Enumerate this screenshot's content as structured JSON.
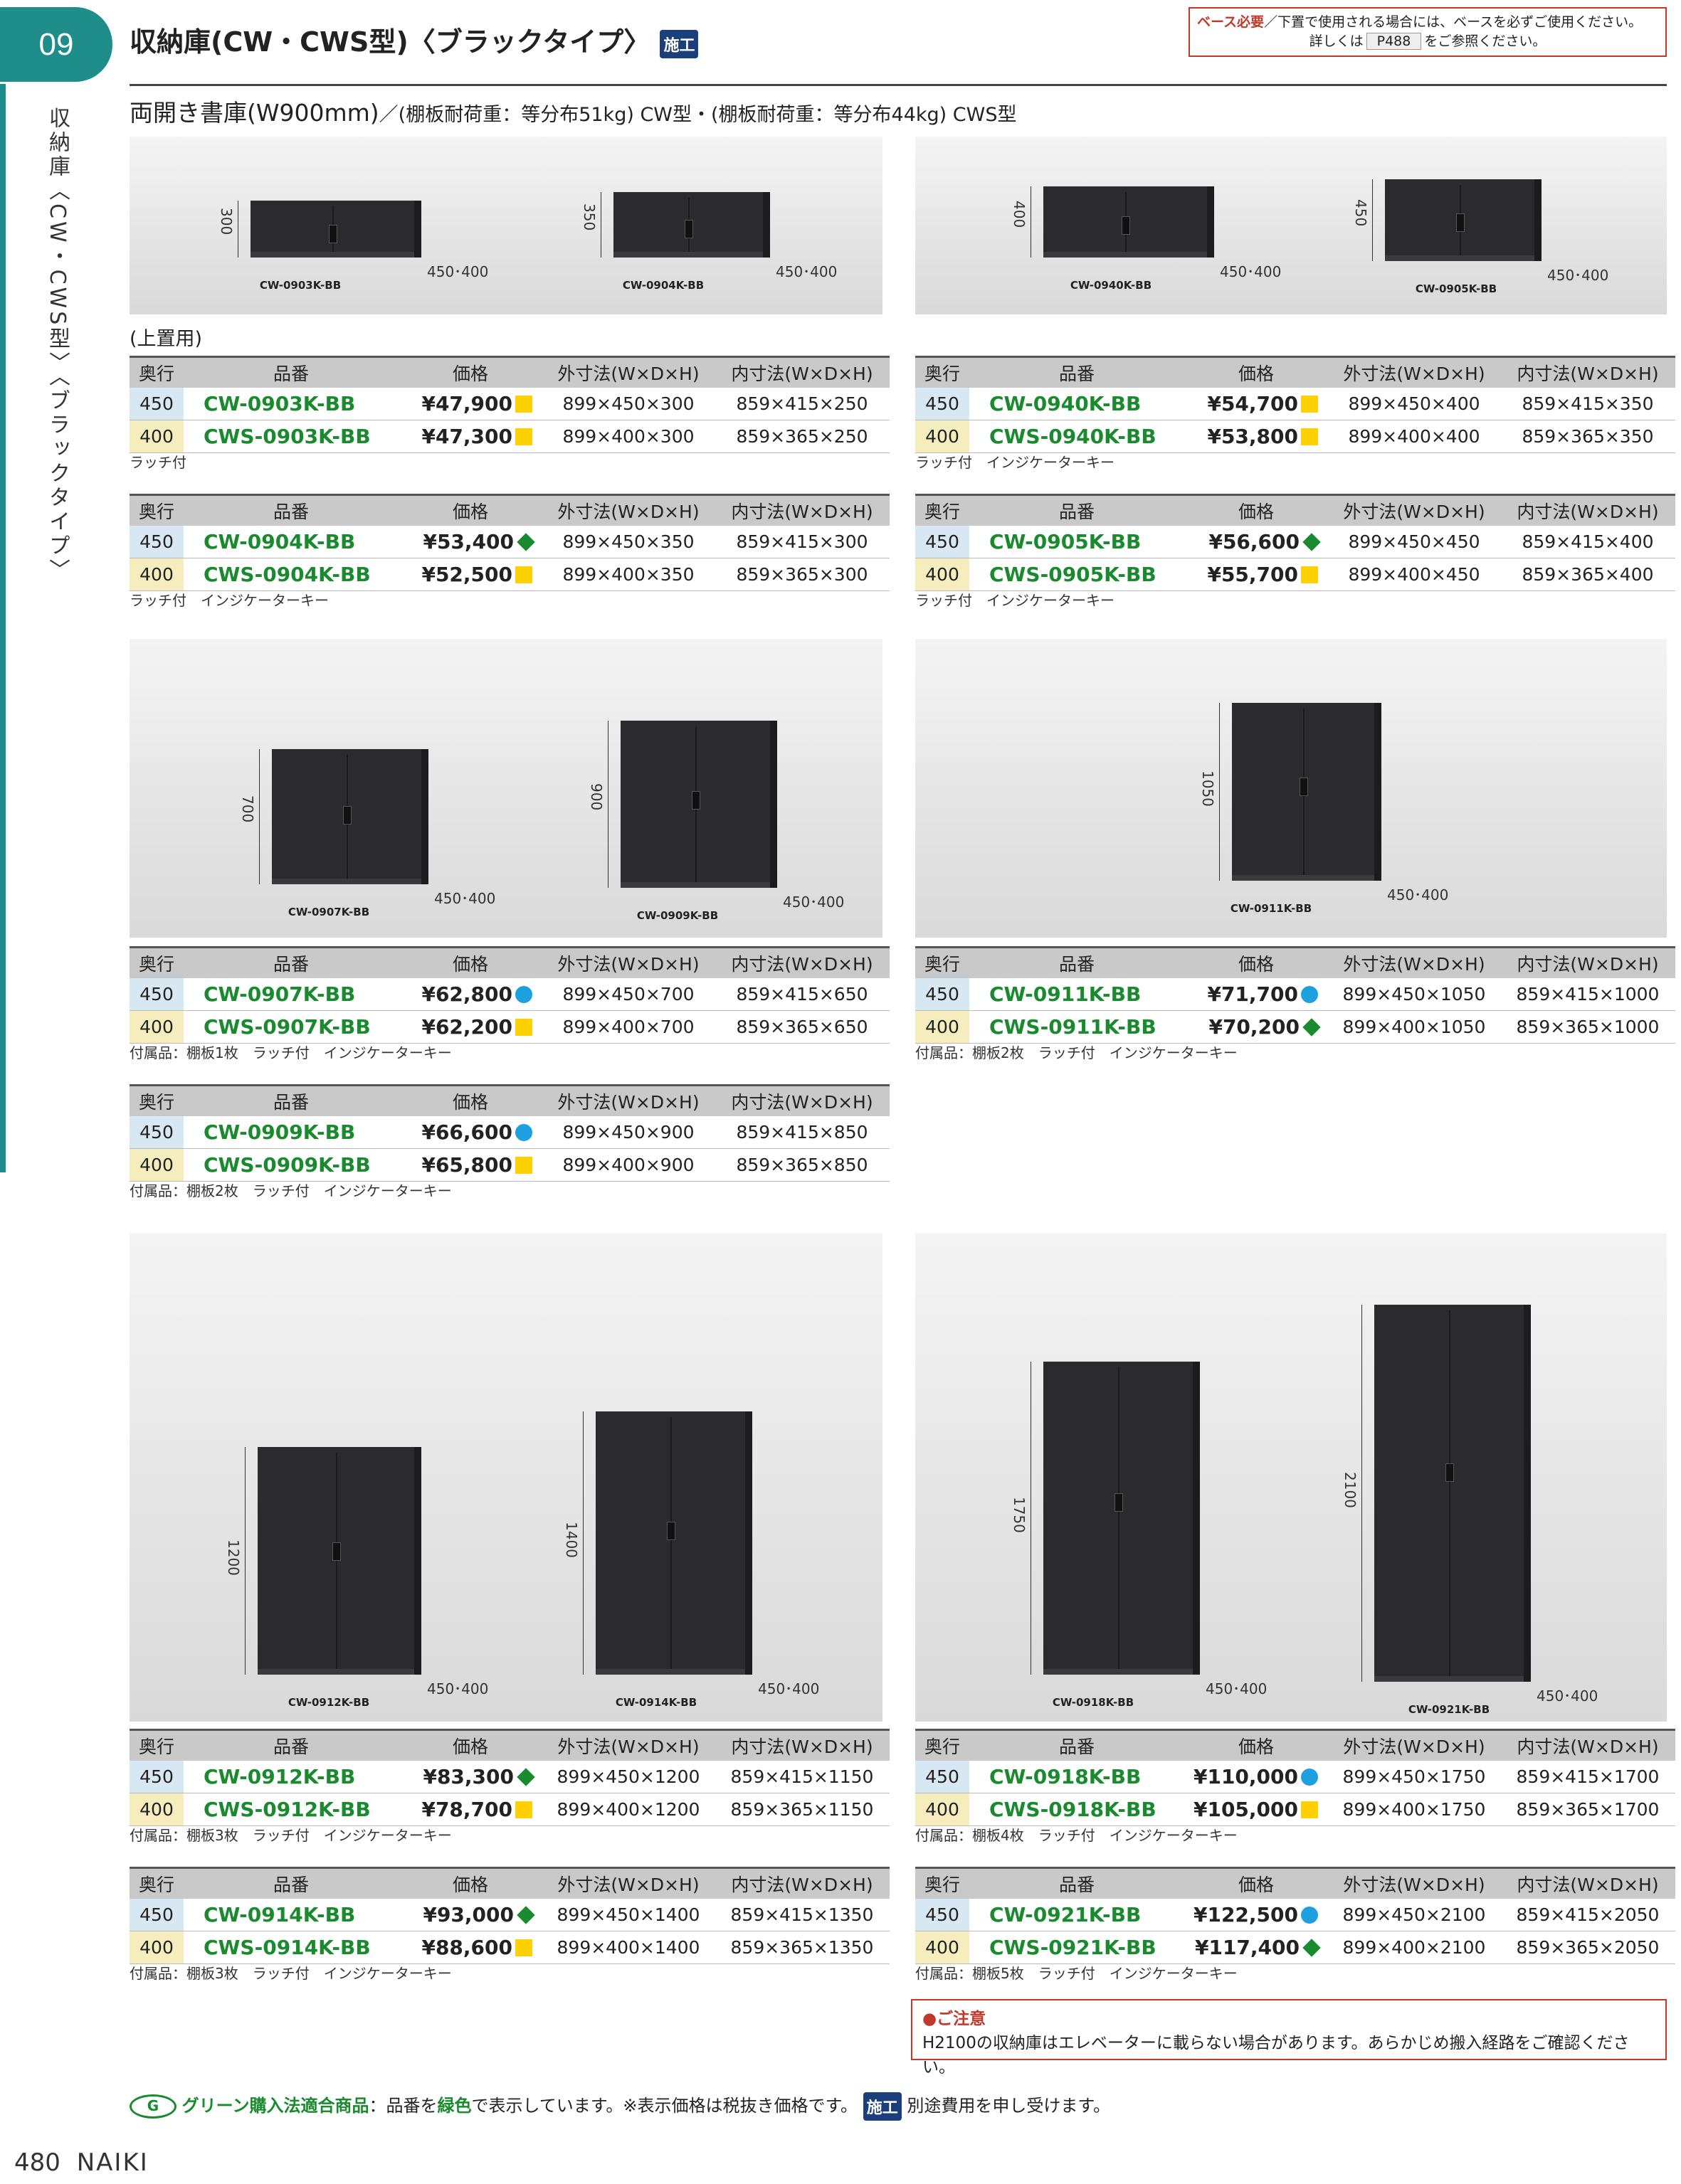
{
  "header": {
    "chapter": "09",
    "vertical_title": "収納庫〈CW・CWS型〉〈ブラックタイプ〉",
    "title": "収納庫(CW・CWS型)〈ブラックタイプ〉",
    "badge": "施工",
    "note_red": "ベース必要",
    "note_line1": "／下置で使用される場合には、ベースを必ずご使用ください。",
    "note_line2a": "詳しくは",
    "note_page": "P488",
    "note_line2b": "をご参照ください。",
    "subtitle_main": "両開き書庫(W900mm)",
    "subtitle_rest": "／(棚板耐荷重：等分布51kg) CW型・(棚板耐荷重：等分布44kg) CWS型"
  },
  "table_headers": [
    "奥行",
    "品番",
    "価格",
    "外寸法(W×D×H)",
    "内寸法(W×D×H)"
  ],
  "photos": {
    "p1": [
      {
        "cap": "CW-0903K-BB",
        "h": "300",
        "d": "450･400"
      },
      {
        "cap": "CW-0904K-BB",
        "h": "350",
        "d": "450･400"
      }
    ],
    "p2": [
      {
        "cap": "CW-0940K-BB",
        "h": "400",
        "d": "450･400"
      },
      {
        "cap": "CW-0905K-BB",
        "h": "450",
        "d": "450･400"
      }
    ],
    "p3": [
      {
        "cap": "CW-0907K-BB",
        "h": "700",
        "d": "450･400"
      },
      {
        "cap": "CW-0909K-BB",
        "h": "900",
        "d": "450･400"
      }
    ],
    "p4": [
      {
        "cap": "CW-0911K-BB",
        "h": "1050",
        "d": "450･400"
      }
    ],
    "p5": [
      {
        "cap": "CW-0912K-BB",
        "h": "1200",
        "d": "450･400"
      },
      {
        "cap": "CW-0914K-BB",
        "h": "1400",
        "d": "450･400"
      }
    ],
    "p6": [
      {
        "cap": "CW-0918K-BB",
        "h": "1750",
        "d": "450･400"
      },
      {
        "cap": "CW-0921K-BB",
        "h": "2100",
        "d": "450･400"
      }
    ]
  },
  "upper_label": "(上置用)",
  "tables": {
    "t0903": {
      "rows": [
        {
          "depth": "450",
          "part": "CW-0903K-BB",
          "price": "¥47,900",
          "mark": "sq",
          "outer": "899×450×300",
          "inner": "859×415×250"
        },
        {
          "depth": "400",
          "part": "CWS-0903K-BB",
          "price": "¥47,300",
          "mark": "sq",
          "outer": "899×400×300",
          "inner": "859×365×250"
        }
      ],
      "note": "ラッチ付"
    },
    "t0940": {
      "rows": [
        {
          "depth": "450",
          "part": "CW-0940K-BB",
          "price": "¥54,700",
          "mark": "sq",
          "outer": "899×450×400",
          "inner": "859×415×350"
        },
        {
          "depth": "400",
          "part": "CWS-0940K-BB",
          "price": "¥53,800",
          "mark": "sq",
          "outer": "899×400×400",
          "inner": "859×365×350"
        }
      ],
      "note": "ラッチ付　インジケーターキー"
    },
    "t0904": {
      "rows": [
        {
          "depth": "450",
          "part": "CW-0904K-BB",
          "price": "¥53,400",
          "mark": "di",
          "outer": "899×450×350",
          "inner": "859×415×300"
        },
        {
          "depth": "400",
          "part": "CWS-0904K-BB",
          "price": "¥52,500",
          "mark": "sq",
          "outer": "899×400×350",
          "inner": "859×365×300"
        }
      ],
      "note": "ラッチ付　インジケーターキー"
    },
    "t0905": {
      "rows": [
        {
          "depth": "450",
          "part": "CW-0905K-BB",
          "price": "¥56,600",
          "mark": "di",
          "outer": "899×450×450",
          "inner": "859×415×400"
        },
        {
          "depth": "400",
          "part": "CWS-0905K-BB",
          "price": "¥55,700",
          "mark": "sq",
          "outer": "899×400×450",
          "inner": "859×365×400"
        }
      ],
      "note": "ラッチ付　インジケーターキー"
    },
    "t0907": {
      "rows": [
        {
          "depth": "450",
          "part": "CW-0907K-BB",
          "price": "¥62,800",
          "mark": "ci",
          "outer": "899×450×700",
          "inner": "859×415×650"
        },
        {
          "depth": "400",
          "part": "CWS-0907K-BB",
          "price": "¥62,200",
          "mark": "sq",
          "outer": "899×400×700",
          "inner": "859×365×650"
        }
      ],
      "note": "付属品：棚板1枚　ラッチ付　インジケーターキー"
    },
    "t0911": {
      "rows": [
        {
          "depth": "450",
          "part": "CW-0911K-BB",
          "price": "¥71,700",
          "mark": "ci",
          "outer": "899×450×1050",
          "inner": "859×415×1000"
        },
        {
          "depth": "400",
          "part": "CWS-0911K-BB",
          "price": "¥70,200",
          "mark": "di",
          "outer": "899×400×1050",
          "inner": "859×365×1000"
        }
      ],
      "note": "付属品：棚板2枚　ラッチ付　インジケーターキー"
    },
    "t0909": {
      "rows": [
        {
          "depth": "450",
          "part": "CW-0909K-BB",
          "price": "¥66,600",
          "mark": "ci",
          "outer": "899×450×900",
          "inner": "859×415×850"
        },
        {
          "depth": "400",
          "part": "CWS-0909K-BB",
          "price": "¥65,800",
          "mark": "sq",
          "outer": "899×400×900",
          "inner": "859×365×850"
        }
      ],
      "note": "付属品：棚板2枚　ラッチ付　インジケーターキー"
    },
    "t0912": {
      "rows": [
        {
          "depth": "450",
          "part": "CW-0912K-BB",
          "price": "¥83,300",
          "mark": "di",
          "outer": "899×450×1200",
          "inner": "859×415×1150"
        },
        {
          "depth": "400",
          "part": "CWS-0912K-BB",
          "price": "¥78,700",
          "mark": "sq",
          "outer": "899×400×1200",
          "inner": "859×365×1150"
        }
      ],
      "note": "付属品：棚板3枚　ラッチ付　インジケーターキー"
    },
    "t0918": {
      "rows": [
        {
          "depth": "450",
          "part": "CW-0918K-BB",
          "price": "¥110,000",
          "mark": "ci",
          "outer": "899×450×1750",
          "inner": "859×415×1700"
        },
        {
          "depth": "400",
          "part": "CWS-0918K-BB",
          "price": "¥105,000",
          "mark": "sq",
          "outer": "899×400×1750",
          "inner": "859×365×1700"
        }
      ],
      "note": "付属品：棚板4枚　ラッチ付　インジケーターキー"
    },
    "t0914": {
      "rows": [
        {
          "depth": "450",
          "part": "CW-0914K-BB",
          "price": "¥93,000",
          "mark": "di",
          "outer": "899×450×1400",
          "inner": "859×415×1350"
        },
        {
          "depth": "400",
          "part": "CWS-0914K-BB",
          "price": "¥88,600",
          "mark": "sq",
          "outer": "899×400×1400",
          "inner": "859×365×1350"
        }
      ],
      "note": "付属品：棚板3枚　ラッチ付　インジケーターキー"
    },
    "t0921": {
      "rows": [
        {
          "depth": "450",
          "part": "CW-0921K-BB",
          "price": "¥122,500",
          "mark": "ci",
          "outer": "899×450×2100",
          "inner": "859×415×2050"
        },
        {
          "depth": "400",
          "part": "CWS-0921K-BB",
          "price": "¥117,400",
          "mark": "di",
          "outer": "899×400×2100",
          "inner": "859×365×2050"
        }
      ],
      "note": "付属品：棚板5枚　ラッチ付　インジケーターキー"
    }
  },
  "caution": {
    "title": "●ご注意",
    "text": "H2100の収納庫はエレベーターに載らない場合があります。あらかじめ搬入経路をご確認ください。"
  },
  "footer": {
    "green_icon": "G",
    "green_title": "グリーン購入法適合商品",
    "green_text_a": "：品番を",
    "green_word": "緑色",
    "green_text_b": "で表示しています。※表示価格は税抜き価格です。",
    "badge": "施工",
    "green_text_c": "別途費用を申し受けます。",
    "page": "480",
    "brand": "NAIKI"
  },
  "colors": {
    "accent": "#1f8d8a",
    "green": "#1a8a2e",
    "red": "#c0392b",
    "navy": "#1b3f7a"
  }
}
